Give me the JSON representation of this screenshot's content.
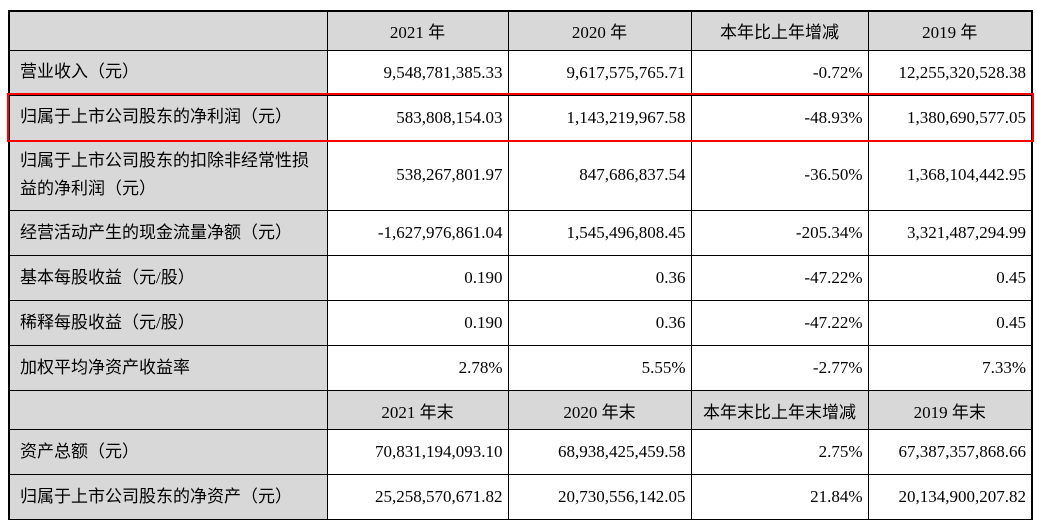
{
  "colors": {
    "header_bg": "#d8d8d8",
    "label_bg": "#d8d8d8",
    "value_bg": "#ffffff",
    "grid_border": "#000000",
    "highlight_border": "#fe0000"
  },
  "sections": [
    {
      "headers": [
        "",
        "2021 年",
        "2020 年",
        "本年比上年增减",
        "2019 年"
      ],
      "rows": [
        {
          "label": "营业收入（元）",
          "values": [
            "9,548,781,385.33",
            "9,617,575,765.71",
            "-0.72%",
            "12,255,320,528.38"
          ],
          "highlighted": false
        },
        {
          "label": "归属于上市公司股东的净利润（元）",
          "values": [
            "583,808,154.03",
            "1,143,219,967.58",
            "-48.93%",
            "1,380,690,577.05"
          ],
          "highlighted": true
        },
        {
          "label": "归属于上市公司股东的扣除非经常性损益的净利润（元）",
          "values": [
            "538,267,801.97",
            "847,686,837.54",
            "-36.50%",
            "1,368,104,442.95"
          ],
          "highlighted": false
        },
        {
          "label": "经营活动产生的现金流量净额（元）",
          "values": [
            "-1,627,976,861.04",
            "1,545,496,808.45",
            "-205.34%",
            "3,321,487,294.99"
          ],
          "highlighted": false
        },
        {
          "label": "基本每股收益（元/股）",
          "values": [
            "0.190",
            "0.36",
            "-47.22%",
            "0.45"
          ],
          "highlighted": false
        },
        {
          "label": "稀释每股收益（元/股）",
          "values": [
            "0.190",
            "0.36",
            "-47.22%",
            "0.45"
          ],
          "highlighted": false
        },
        {
          "label": "加权平均净资产收益率",
          "values": [
            "2.78%",
            "5.55%",
            "-2.77%",
            "7.33%"
          ],
          "highlighted": false
        }
      ]
    },
    {
      "headers": [
        "",
        "2021 年末",
        "2020 年末",
        "本年末比上年末增减",
        "2019 年末"
      ],
      "rows": [
        {
          "label": "资产总额（元）",
          "values": [
            "70,831,194,093.10",
            "68,938,425,459.58",
            "2.75%",
            "67,387,357,868.66"
          ],
          "highlighted": false
        },
        {
          "label": "归属于上市公司股东的净资产（元）",
          "values": [
            "25,258,570,671.82",
            "20,730,556,142.05",
            "21.84%",
            "20,134,900,207.82"
          ],
          "highlighted": false
        }
      ]
    }
  ]
}
